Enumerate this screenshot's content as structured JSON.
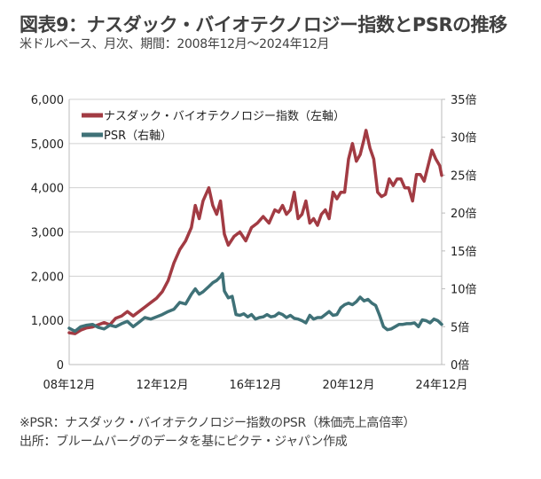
{
  "header": {
    "title": "図表9：ナスダック・バイオテクノロジー指数とPSRの推移",
    "subtitle": "米ドルベース、月次、期間：2008年12月～2024年12月"
  },
  "footer": {
    "note": "※PSR：ナスダック・バイオテクノロジー指数のPSR（株価売上高倍率）",
    "source": "出所：ブルームバーグのデータを基にピクテ・ジャパン作成"
  },
  "chart_data": {
    "type": "line",
    "title": "図表9：ナスダック・バイオテクノロジー指数とPSRの推移",
    "x_unit": "months since 2008-12",
    "xlim": [
      0,
      192
    ],
    "x_ticks": [
      0,
      48,
      96,
      144,
      192
    ],
    "x_tick_labels": [
      "08年12月",
      "12年12月",
      "16年12月",
      "20年12月",
      "24年12月"
    ],
    "y_left": {
      "ylim": [
        0,
        6000
      ],
      "ticks": [
        0,
        1000,
        2000,
        3000,
        4000,
        5000,
        6000
      ],
      "tick_labels": [
        "0",
        "1,000",
        "2,000",
        "3,000",
        "4,000",
        "5,000",
        "6,000"
      ]
    },
    "y_right": {
      "ylim": [
        0,
        35
      ],
      "ticks": [
        0,
        5,
        10,
        15,
        20,
        25,
        30,
        35
      ],
      "tick_labels": [
        "0倍",
        "5倍",
        "10倍",
        "15倍",
        "20倍",
        "25倍",
        "30倍",
        "35倍"
      ]
    },
    "grid": true,
    "legend_position": "top-left",
    "series": [
      {
        "name": "ナスダック・バイオテクノロジー指数（左軸）",
        "axis": "left",
        "color": "#a23b43",
        "points": [
          [
            0,
            720
          ],
          [
            3,
            700
          ],
          [
            6,
            780
          ],
          [
            9,
            830
          ],
          [
            12,
            850
          ],
          [
            15,
            900
          ],
          [
            18,
            950
          ],
          [
            21,
            900
          ],
          [
            24,
            1050
          ],
          [
            27,
            1100
          ],
          [
            30,
            1200
          ],
          [
            33,
            1100
          ],
          [
            36,
            1200
          ],
          [
            39,
            1300
          ],
          [
            42,
            1400
          ],
          [
            45,
            1500
          ],
          [
            48,
            1650
          ],
          [
            51,
            1900
          ],
          [
            54,
            2300
          ],
          [
            57,
            2600
          ],
          [
            60,
            2800
          ],
          [
            63,
            3100
          ],
          [
            65,
            3600
          ],
          [
            67,
            3300
          ],
          [
            69,
            3700
          ],
          [
            72,
            4000
          ],
          [
            74,
            3600
          ],
          [
            76,
            3400
          ],
          [
            78,
            3700
          ],
          [
            80,
            2950
          ],
          [
            82,
            2700
          ],
          [
            85,
            2900
          ],
          [
            88,
            3000
          ],
          [
            91,
            2800
          ],
          [
            94,
            3100
          ],
          [
            97,
            3200
          ],
          [
            100,
            3350
          ],
          [
            103,
            3200
          ],
          [
            106,
            3500
          ],
          [
            108,
            3450
          ],
          [
            110,
            3600
          ],
          [
            112,
            3400
          ],
          [
            114,
            3500
          ],
          [
            116,
            3900
          ],
          [
            118,
            3300
          ],
          [
            120,
            3400
          ],
          [
            122,
            3700
          ],
          [
            124,
            3200
          ],
          [
            126,
            3300
          ],
          [
            128,
            3150
          ],
          [
            130,
            3400
          ],
          [
            132,
            3500
          ],
          [
            134,
            3300
          ],
          [
            136,
            3900
          ],
          [
            138,
            3750
          ],
          [
            140,
            3900
          ],
          [
            142,
            3900
          ],
          [
            144,
            4650
          ],
          [
            146,
            5000
          ],
          [
            148,
            4600
          ],
          [
            150,
            4750
          ],
          [
            152,
            5100
          ],
          [
            153,
            5300
          ],
          [
            155,
            4900
          ],
          [
            157,
            4650
          ],
          [
            159,
            3900
          ],
          [
            161,
            3800
          ],
          [
            163,
            3850
          ],
          [
            165,
            4200
          ],
          [
            167,
            4050
          ],
          [
            169,
            4200
          ],
          [
            171,
            4200
          ],
          [
            173,
            4000
          ],
          [
            175,
            4000
          ],
          [
            177,
            3700
          ],
          [
            179,
            4300
          ],
          [
            181,
            4300
          ],
          [
            183,
            4150
          ],
          [
            185,
            4500
          ],
          [
            187,
            4850
          ],
          [
            189,
            4650
          ],
          [
            191,
            4500
          ],
          [
            192,
            4280
          ]
        ]
      },
      {
        "name": "PSR（右軸）",
        "axis": "right",
        "color": "#3f7177",
        "points": [
          [
            0,
            4.8
          ],
          [
            3,
            4.4
          ],
          [
            6,
            5.0
          ],
          [
            9,
            5.2
          ],
          [
            12,
            5.3
          ],
          [
            15,
            4.9
          ],
          [
            18,
            4.7
          ],
          [
            21,
            5.2
          ],
          [
            24,
            5.0
          ],
          [
            27,
            5.4
          ],
          [
            30,
            5.7
          ],
          [
            33,
            5.0
          ],
          [
            36,
            5.6
          ],
          [
            39,
            6.2
          ],
          [
            42,
            6.0
          ],
          [
            45,
            6.3
          ],
          [
            48,
            6.6
          ],
          [
            51,
            7.0
          ],
          [
            54,
            7.3
          ],
          [
            57,
            8.2
          ],
          [
            60,
            8.0
          ],
          [
            63,
            9.3
          ],
          [
            65,
            10.0
          ],
          [
            67,
            9.3
          ],
          [
            69,
            9.6
          ],
          [
            72,
            10.3
          ],
          [
            74,
            10.8
          ],
          [
            76,
            11.1
          ],
          [
            78,
            11.6
          ],
          [
            79,
            12.0
          ],
          [
            80,
            9.7
          ],
          [
            82,
            8.8
          ],
          [
            84,
            9.0
          ],
          [
            86,
            6.6
          ],
          [
            88,
            6.5
          ],
          [
            90,
            6.7
          ],
          [
            92,
            6.3
          ],
          [
            94,
            6.6
          ],
          [
            96,
            6.0
          ],
          [
            98,
            6.2
          ],
          [
            100,
            6.3
          ],
          [
            102,
            6.6
          ],
          [
            104,
            6.3
          ],
          [
            106,
            6.4
          ],
          [
            108,
            6.8
          ],
          [
            110,
            6.6
          ],
          [
            112,
            6.2
          ],
          [
            114,
            6.5
          ],
          [
            116,
            6.1
          ],
          [
            118,
            6.0
          ],
          [
            120,
            5.8
          ],
          [
            122,
            5.5
          ],
          [
            124,
            6.5
          ],
          [
            126,
            6.0
          ],
          [
            128,
            6.2
          ],
          [
            130,
            6.2
          ],
          [
            132,
            6.6
          ],
          [
            134,
            7.0
          ],
          [
            136,
            6.5
          ],
          [
            138,
            6.6
          ],
          [
            140,
            7.5
          ],
          [
            142,
            7.9
          ],
          [
            144,
            8.1
          ],
          [
            146,
            7.9
          ],
          [
            148,
            8.3
          ],
          [
            150,
            8.9
          ],
          [
            152,
            8.4
          ],
          [
            154,
            8.6
          ],
          [
            156,
            8.1
          ],
          [
            158,
            7.8
          ],
          [
            160,
            6.5
          ],
          [
            162,
            5.0
          ],
          [
            164,
            4.6
          ],
          [
            166,
            4.7
          ],
          [
            168,
            5.0
          ],
          [
            170,
            5.3
          ],
          [
            172,
            5.3
          ],
          [
            174,
            5.4
          ],
          [
            176,
            5.4
          ],
          [
            178,
            5.5
          ],
          [
            180,
            5.0
          ],
          [
            182,
            5.9
          ],
          [
            184,
            5.8
          ],
          [
            186,
            5.5
          ],
          [
            188,
            6.0
          ],
          [
            190,
            5.8
          ],
          [
            192,
            5.3
          ]
        ]
      }
    ]
  }
}
